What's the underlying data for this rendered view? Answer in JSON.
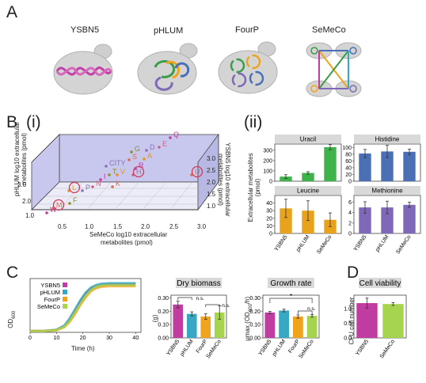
{
  "panel_a": {
    "letter": "A",
    "strains": [
      "YSBN5",
      "pHLUM",
      "FourP",
      "SeMeCo"
    ]
  },
  "panel_b": {
    "letter": "B",
    "sub_i": "(i)",
    "sub_ii": "(ii)",
    "scatter3d": {
      "axis_semeco": [
        "SeMeCo log10 extracellular",
        "metabolites (pmol)"
      ],
      "axis_phlum": [
        "pHLUM  log10 extracellular",
        "metabolites (pmol)"
      ],
      "axis_ysbn5": [
        "YSBN5  log10 extracellular",
        "metabolites (pmol)"
      ],
      "ticks_x": [
        "0.5",
        "1.0",
        "1.5",
        "2.0",
        "2.5",
        "3.0"
      ],
      "ticks_left": [
        "1.0",
        "2.0",
        "3.0"
      ],
      "ticks_right": [
        "1.0",
        "1.5",
        "2.0",
        "2.5",
        "3.0"
      ]
    },
    "bar_ylabel": [
      "Extracellular metabolites",
      "(pmol)"
    ]
  },
  "panel_c": {
    "letter": "C",
    "growth_ylabel": "OD",
    "growth_ylabel_sub": "600",
    "growth_xlabel": "Time (h)",
    "growth_xticks": [
      "0",
      "10",
      "20",
      "30",
      "40"
    ],
    "dry_ylabel": "(g)",
    "rate_ylabel": "μmax (OD",
    "rate_ylabel_sub": "600",
    "rate_ylabel_end": "/h)",
    "ns": "n.s.",
    "star": "*"
  },
  "panel_d": {
    "letter": "D",
    "ylabel": "CFU  cell number"
  },
  "colors": {
    "YSBN5": "#c03ca0",
    "pHLUM": "#36a8c4",
    "FourP": "#f0a31c",
    "SeMeCo": "#a7d44e",
    "uracil": "#3db34a",
    "histidine": "#4a6fb5",
    "leucine": "#e8a21c",
    "methionine": "#8068b8",
    "panel_header": "#d9d9d9",
    "cube_face": "#c8c8ee"
  },
  "chart_data": [
    {
      "type": "bar",
      "title": "Uracil",
      "categories": [
        "YSBN5",
        "pHLUM",
        "SeMeCo"
      ],
      "values": [
        45,
        80,
        330
      ],
      "errors": [
        18,
        12,
        25
      ],
      "ylim": [
        0,
        360
      ],
      "yticks": [
        "0",
        "100",
        "200",
        "300"
      ],
      "xlabel": "",
      "ylabel": "Extracellular metabolites (pmol)"
    },
    {
      "type": "bar",
      "title": "Histidine",
      "categories": [
        "YSBN5",
        "pHLUM",
        "SeMeCo"
      ],
      "values": [
        82,
        88,
        87
      ],
      "errors": [
        12,
        18,
        8
      ],
      "ylim": [
        0,
        110
      ],
      "yticks": [
        "0",
        "20",
        "40",
        "60",
        "80",
        "100"
      ]
    },
    {
      "type": "bar",
      "title": "Leucine",
      "categories": [
        "YSBN5",
        "pHLUM",
        "SeMeCo"
      ],
      "values": [
        33,
        30,
        18
      ],
      "errors": [
        12,
        13,
        9
      ],
      "ylim": [
        0,
        50
      ],
      "yticks": [
        "0",
        "10",
        "20",
        "30",
        "40"
      ]
    },
    {
      "type": "bar",
      "title": "Methionine",
      "categories": [
        "YSBN5",
        "pHLUM",
        "SeMeCo"
      ],
      "values": [
        5.0,
        5.0,
        5.5
      ],
      "errors": [
        1.1,
        1.2,
        0.5
      ],
      "ylim": [
        0,
        7.3
      ],
      "yticks": [
        "0",
        "2",
        "4",
        "6"
      ]
    },
    {
      "type": "line",
      "title": "",
      "xlabel": "Time (h)",
      "ylabel": "OD600",
      "xlim": [
        0,
        42
      ],
      "ylim": [
        0,
        2.1
      ],
      "legend": "top-left",
      "series": [
        {
          "name": "YSBN5",
          "x": [
            0,
            5,
            10,
            13,
            15,
            17,
            19,
            21,
            23,
            25,
            27,
            30,
            35,
            40
          ],
          "y": [
            0.05,
            0.05,
            0.1,
            0.25,
            0.5,
            0.85,
            1.2,
            1.5,
            1.7,
            1.8,
            1.85,
            1.88,
            1.88,
            1.88
          ]
        },
        {
          "name": "pHLUM",
          "x": [
            0,
            5,
            10,
            13,
            15,
            17,
            19,
            21,
            23,
            25,
            27,
            30,
            35,
            40
          ],
          "y": [
            0.05,
            0.05,
            0.1,
            0.27,
            0.55,
            0.9,
            1.25,
            1.55,
            1.75,
            1.85,
            1.9,
            1.92,
            1.92,
            1.92
          ]
        },
        {
          "name": "FourP",
          "x": [
            0,
            5,
            10,
            13,
            15,
            17,
            19,
            21,
            23,
            25,
            27,
            30,
            35,
            40
          ],
          "y": [
            0.05,
            0.05,
            0.08,
            0.2,
            0.4,
            0.7,
            1.05,
            1.35,
            1.6,
            1.72,
            1.78,
            1.8,
            1.8,
            1.8
          ]
        },
        {
          "name": "SeMeCo",
          "x": [
            0,
            5,
            10,
            13,
            15,
            17,
            19,
            21,
            23,
            25,
            27,
            30,
            35,
            40
          ],
          "y": [
            0.05,
            0.05,
            0.09,
            0.22,
            0.45,
            0.78,
            1.1,
            1.42,
            1.65,
            1.78,
            1.83,
            1.85,
            1.85,
            1.85
          ]
        }
      ]
    },
    {
      "type": "bar",
      "title": "Dry biomass",
      "categories": [
        "YSBN5",
        "pHLUM",
        "FourP",
        "SeMeCo"
      ],
      "values": [
        0.25,
        0.18,
        0.16,
        0.19
      ],
      "errors": [
        0.025,
        0.015,
        0.02,
        0.05
      ],
      "ylim": [
        0,
        0.32
      ],
      "yticks": [
        "0.00",
        "0.10",
        "0.20",
        "0.30"
      ],
      "ylabel": "(g)"
    },
    {
      "type": "bar",
      "title": "Growth rate",
      "categories": [
        "YSBN5",
        "pHLUM",
        "FourP",
        "SeMeCo"
      ],
      "values": [
        0.19,
        0.205,
        0.16,
        0.165
      ],
      "errors": [
        0.008,
        0.01,
        0.012,
        0.01
      ],
      "ylim": [
        0,
        0.32
      ],
      "yticks": [
        "0.00",
        "0.10",
        "0.20",
        "0.30"
      ],
      "ylabel": "μmax (OD600/h)"
    },
    {
      "type": "bar",
      "title": "Cell viability",
      "categories": [
        "YSBN5",
        "SeMeCo"
      ],
      "values": [
        1.18,
        1.15
      ],
      "errors": [
        0.17,
        0.05
      ],
      "ylim": [
        0,
        1.45
      ],
      "yticks": [
        "0.0",
        "0.5",
        "1.0"
      ],
      "ylabel": "CFU  cell number"
    },
    {
      "type": "scatter",
      "title": "",
      "xlabel": "SeMeCo log10 extracellular metabolites (pmol)",
      "ylabel": "pHLUM  log10 extracellular metabolites (pmol)",
      "zlabel": "YSBN5  log10 extracellular metabolites (pmol)",
      "points": [
        {
          "label": "W",
          "circled": false
        },
        {
          "label": "M",
          "circled": true
        },
        {
          "label": "F",
          "circled": false
        },
        {
          "label": "L",
          "circled": true
        },
        {
          "label": "P",
          "circled": false
        },
        {
          "label": "N",
          "circled": false
        },
        {
          "label": "I",
          "circled": false
        },
        {
          "label": "K",
          "circled": false
        },
        {
          "label": "T",
          "circled": false
        },
        {
          "label": "V",
          "circled": false
        },
        {
          "label": "CITY",
          "circled": false
        },
        {
          "label": "H",
          "circled": true
        },
        {
          "label": "R",
          "circled": false
        },
        {
          "label": "S",
          "circled": false
        },
        {
          "label": "G",
          "circled": false
        },
        {
          "label": "A",
          "circled": false
        },
        {
          "label": "D",
          "circled": false
        },
        {
          "label": "E",
          "circled": false
        },
        {
          "label": "Q",
          "circled": false
        },
        {
          "label": "U",
          "circled": true
        }
      ]
    }
  ]
}
